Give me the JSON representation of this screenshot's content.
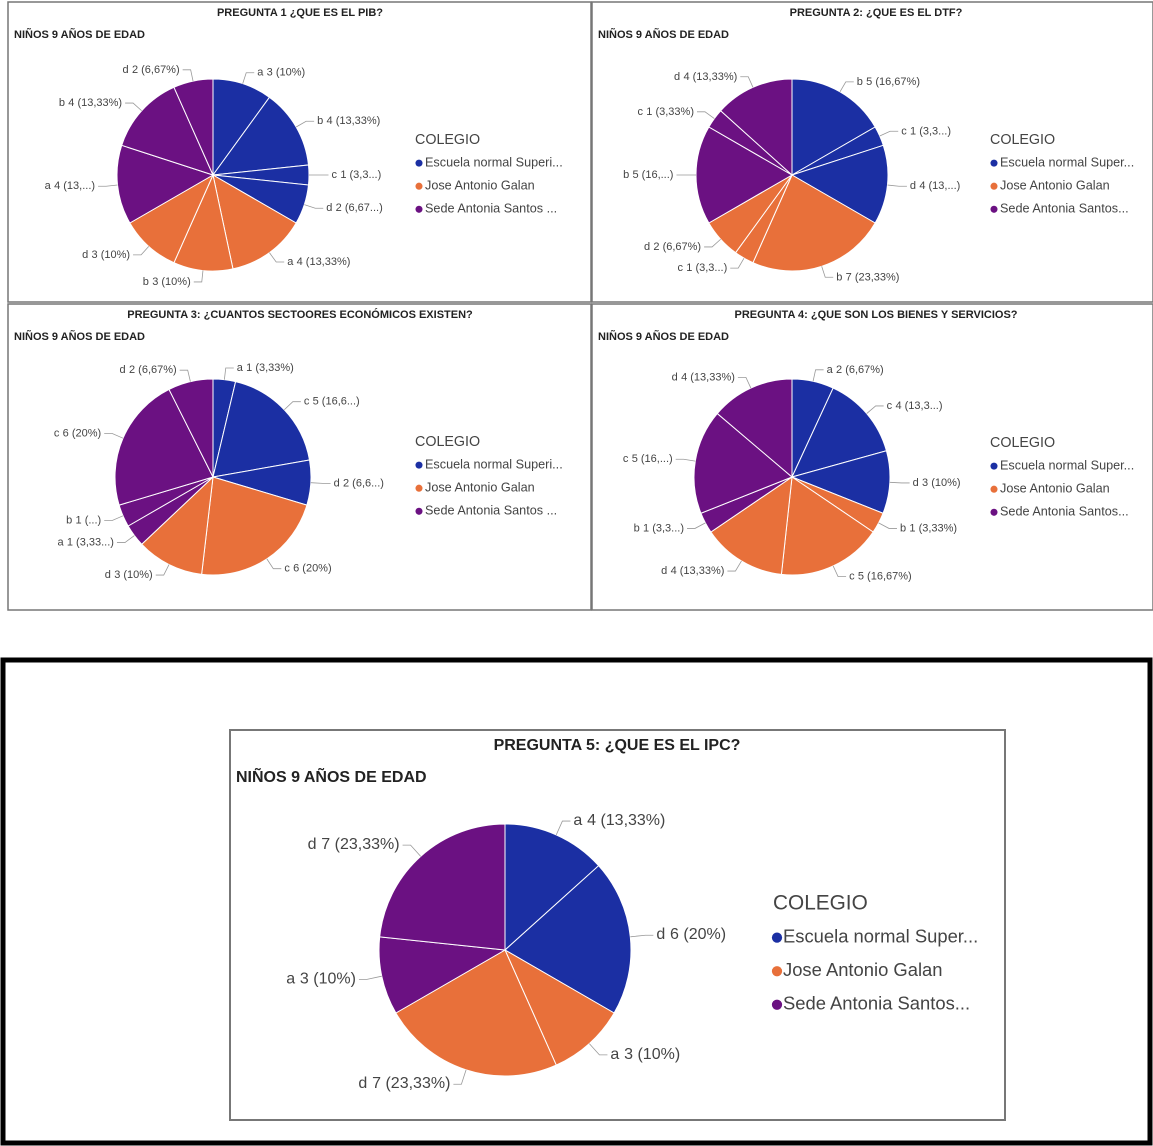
{
  "chart_data": [
    {
      "type": "pie",
      "title": "PREGUNTA 1 ¿QUE ES EL PIB?",
      "subtitle": "NIÑOS 9 AÑOS DE EDAD",
      "legend_title": "COLEGIO",
      "series": [
        {
          "name": "Escuela normal Superi...",
          "color": "#1b2fa3",
          "categories": [
            "a",
            "b",
            "c",
            "d"
          ],
          "values": [
            3,
            4,
            1,
            2
          ],
          "value_labels": [
            "3 (10%)",
            "4 (13,33%)",
            "1 (3,3...)",
            "2 (6,67...)"
          ]
        },
        {
          "name": "Jose Antonio Galan",
          "color": "#e8703a",
          "categories": [
            "a",
            "b",
            "d"
          ],
          "values": [
            4,
            3,
            3
          ],
          "value_labels": [
            "4 (13,33%)",
            "3 (10%)",
            "3 (10%)"
          ]
        },
        {
          "name": "Sede  Antonia Santos ...",
          "color": "#6b1182",
          "categories": [
            "a",
            "b",
            "d"
          ],
          "values": [
            4,
            4,
            2
          ],
          "value_labels": [
            "4 (13,...)",
            "4 (13,33%)",
            "2 (6,67%)"
          ]
        }
      ]
    },
    {
      "type": "pie",
      "title": "PREGUNTA 2: ¿QUE ES EL DTF?",
      "subtitle": "NIÑOS 9 AÑOS DE EDAD",
      "legend_title": "COLEGIO",
      "series": [
        {
          "name": "Escuela normal Super...",
          "color": "#1b2fa3",
          "categories": [
            "b",
            "c",
            "d"
          ],
          "values": [
            5,
            1,
            4
          ],
          "value_labels": [
            "5 (16,67%)",
            "1 (3,3...)",
            "4 (13,...)"
          ]
        },
        {
          "name": "Jose Antonio Galan",
          "color": "#e8703a",
          "categories": [
            "b",
            "c",
            "d"
          ],
          "values": [
            7,
            1,
            2
          ],
          "value_labels": [
            "7 (23,33%)",
            "1 (3,3...)",
            "2 (6,67%)"
          ]
        },
        {
          "name": "Sede  Antonia Santos...",
          "color": "#6b1182",
          "categories": [
            "b",
            "c",
            "d"
          ],
          "values": [
            5,
            1,
            4
          ],
          "value_labels": [
            "5 (16,...)",
            "1 (3,33%)",
            "4 (13,33%)"
          ]
        }
      ]
    },
    {
      "type": "pie",
      "title": "PREGUNTA 3: ¿CUANTOS SECTOORES ECONÓMICOS EXISTEN?",
      "subtitle": "NIÑOS 9 AÑOS DE EDAD",
      "legend_title": "COLEGIO",
      "series": [
        {
          "name": "Escuela normal Superi...",
          "color": "#1b2fa3",
          "categories": [
            "a",
            "c",
            "d"
          ],
          "values": [
            1,
            5,
            2
          ],
          "value_labels": [
            "1 (3,33%)",
            "5 (16,6...)",
            "2 (6,6...)"
          ]
        },
        {
          "name": "Jose Antonio Galan",
          "color": "#e8703a",
          "categories": [
            "c",
            "d"
          ],
          "values": [
            6,
            3
          ],
          "value_labels": [
            "6 (20%)",
            "3 (10%)"
          ]
        },
        {
          "name": "Sede  Antonia Santos ...",
          "color": "#6b1182",
          "categories": [
            "a",
            "b",
            "c",
            "d"
          ],
          "values": [
            1,
            1,
            6,
            2
          ],
          "value_labels": [
            "1 (3,33...)",
            "1 (...)",
            "6 (20%)",
            "2 (6,67%)"
          ]
        }
      ]
    },
    {
      "type": "pie",
      "title": "PREGUNTA 4: ¿QUE SON LOS BIENES Y SERVICIOS?",
      "subtitle": "NIÑOS 9 AÑOS DE EDAD",
      "legend_title": "COLEGIO",
      "series": [
        {
          "name": "Escuela normal Super...",
          "color": "#1b2fa3",
          "categories": [
            "a",
            "c",
            "d"
          ],
          "values": [
            2,
            4,
            3
          ],
          "value_labels": [
            "2 (6,67%)",
            "4 (13,3...)",
            "3 (10%)"
          ]
        },
        {
          "name": "Jose Antonio Galan",
          "color": "#e8703a",
          "categories": [
            "b",
            "c",
            "d"
          ],
          "values": [
            1,
            5,
            4
          ],
          "value_labels": [
            "1 (3,33%)",
            "5 (16,67%)",
            "4 (13,33%)"
          ]
        },
        {
          "name": "Sede  Antonia Santos...",
          "color": "#6b1182",
          "categories": [
            "b",
            "c",
            "d"
          ],
          "values": [
            1,
            5,
            4
          ],
          "value_labels": [
            "1 (3,3...)",
            "5 (16,...)",
            "4 (13,33%)"
          ]
        }
      ]
    },
    {
      "type": "pie",
      "title": "PREGUNTA 5: ¿QUE ES EL IPC?",
      "subtitle": "NIÑOS 9 AÑOS DE EDAD",
      "legend_title": "COLEGIO",
      "series": [
        {
          "name": "Escuela normal Super...",
          "color": "#1b2fa3",
          "categories": [
            "a",
            "d"
          ],
          "values": [
            4,
            6
          ],
          "value_labels": [
            "4 (13,33%)",
            "6 (20%)"
          ]
        },
        {
          "name": "Jose Antonio Galan",
          "color": "#e8703a",
          "categories": [
            "a",
            "d"
          ],
          "values": [
            3,
            7
          ],
          "value_labels": [
            "3 (10%)",
            "7 (23,33%)"
          ]
        },
        {
          "name": "Sede  Antonia Santos...",
          "color": "#6b1182",
          "categories": [
            "a",
            "d"
          ],
          "values": [
            3,
            7
          ],
          "value_labels": [
            "3 (10%)",
            "7 (23,33%)"
          ]
        }
      ]
    }
  ]
}
